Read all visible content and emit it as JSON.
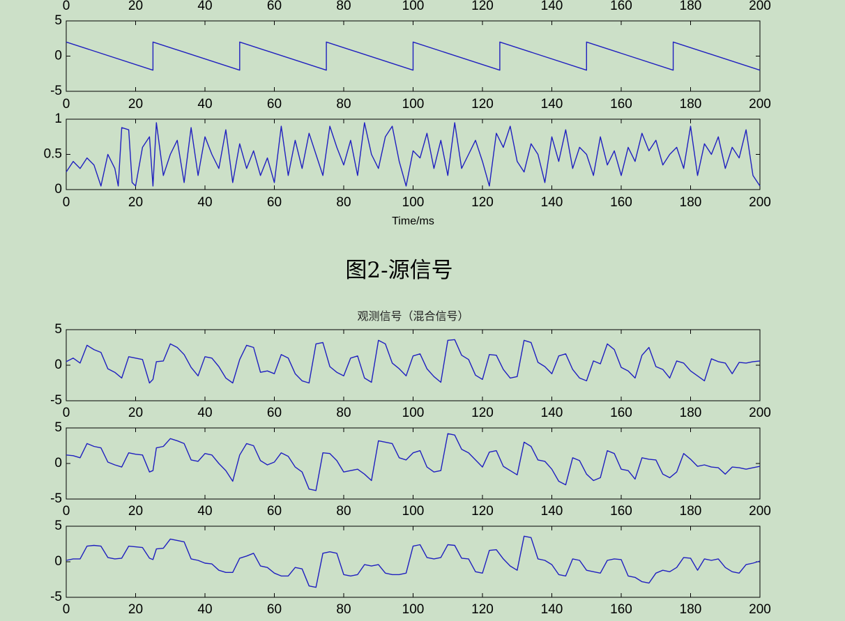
{
  "figure_caption": "图2-源信号",
  "mixed_title": "观测信号（混合信号）",
  "chart_data": [
    {
      "type": "line",
      "id": "source-top-partial",
      "x_ticks": [
        0,
        20,
        40,
        60,
        80,
        100,
        120,
        140,
        160,
        180,
        200
      ],
      "xlim": [
        0,
        200
      ]
    },
    {
      "type": "line",
      "id": "source-sawtooth",
      "xlim": [
        0,
        200
      ],
      "ylim": [
        -5,
        5
      ],
      "x_ticks": [
        0,
        20,
        40,
        60,
        80,
        100,
        120,
        140,
        160,
        180,
        200
      ],
      "y_ticks": [
        -5,
        0,
        5
      ],
      "series": [
        {
          "color": "#1f1fbf",
          "x": [
            0,
            25,
            25,
            50,
            50,
            75,
            75,
            100,
            100,
            125,
            125,
            150,
            150,
            175,
            175,
            200
          ],
          "y": [
            2,
            -2,
            2,
            -2,
            2,
            -2,
            2,
            -2,
            2,
            -2,
            2,
            -2,
            2,
            -2,
            2,
            -2
          ]
        }
      ]
    },
    {
      "type": "line",
      "id": "source-random",
      "xlim": [
        0,
        200
      ],
      "ylim": [
        0,
        1
      ],
      "x_ticks": [
        0,
        20,
        40,
        60,
        80,
        100,
        120,
        140,
        160,
        180,
        200
      ],
      "y_ticks": [
        0,
        0.5,
        1
      ],
      "y_tick_labels": [
        "0",
        "0.5",
        "1"
      ],
      "xlabel": "Time/ms",
      "series": [
        {
          "color": "#1f1fbf",
          "x": [
            0,
            2,
            4,
            6,
            8,
            10,
            12,
            14,
            15,
            16,
            18,
            19,
            20,
            22,
            24,
            25,
            26,
            28,
            30,
            32,
            34,
            36,
            38,
            40,
            42,
            44,
            46,
            48,
            50,
            52,
            54,
            56,
            58,
            60,
            62,
            64,
            66,
            68,
            70,
            72,
            74,
            76,
            78,
            80,
            82,
            84,
            86,
            88,
            90,
            92,
            94,
            96,
            98,
            100,
            102,
            104,
            106,
            108,
            110,
            112,
            114,
            116,
            118,
            120,
            122,
            124,
            126,
            128,
            130,
            132,
            134,
            136,
            138,
            140,
            142,
            144,
            146,
            148,
            150,
            152,
            154,
            156,
            158,
            160,
            162,
            164,
            166,
            168,
            170,
            172,
            174,
            176,
            178,
            180,
            182,
            184,
            186,
            188,
            190,
            192,
            194,
            196,
            198,
            200
          ],
          "y": [
            0.25,
            0.4,
            0.3,
            0.45,
            0.35,
            0.05,
            0.5,
            0.3,
            0.05,
            0.88,
            0.85,
            0.1,
            0.05,
            0.6,
            0.75,
            0.05,
            0.95,
            0.2,
            0.5,
            0.7,
            0.1,
            0.88,
            0.2,
            0.75,
            0.5,
            0.3,
            0.85,
            0.1,
            0.65,
            0.3,
            0.55,
            0.2,
            0.45,
            0.1,
            0.9,
            0.2,
            0.7,
            0.3,
            0.8,
            0.5,
            0.2,
            0.9,
            0.6,
            0.35,
            0.7,
            0.2,
            0.95,
            0.5,
            0.3,
            0.75,
            0.9,
            0.4,
            0.05,
            0.55,
            0.45,
            0.8,
            0.3,
            0.7,
            0.2,
            0.95,
            0.3,
            0.5,
            0.7,
            0.4,
            0.05,
            0.8,
            0.6,
            0.9,
            0.4,
            0.25,
            0.65,
            0.5,
            0.1,
            0.75,
            0.4,
            0.85,
            0.3,
            0.6,
            0.5,
            0.2,
            0.75,
            0.35,
            0.55,
            0.2,
            0.6,
            0.4,
            0.8,
            0.55,
            0.7,
            0.35,
            0.5,
            0.6,
            0.3,
            0.9,
            0.2,
            0.65,
            0.5,
            0.75,
            0.3,
            0.6,
            0.45,
            0.85,
            0.2,
            0.05
          ]
        }
      ]
    },
    {
      "type": "line",
      "id": "mixed-1",
      "xlim": [
        0,
        200
      ],
      "ylim": [
        -5,
        5
      ],
      "x_ticks": [
        0,
        20,
        40,
        60,
        80,
        100,
        120,
        140,
        160,
        180,
        200
      ],
      "y_ticks": [
        -5,
        0,
        5
      ],
      "series": [
        {
          "color": "#1f1fbf",
          "x": [
            0,
            2,
            4,
            6,
            8,
            10,
            12,
            14,
            16,
            18,
            20,
            22,
            24,
            25,
            26,
            28,
            30,
            32,
            34,
            36,
            38,
            40,
            42,
            44,
            46,
            48,
            50,
            52,
            54,
            56,
            58,
            60,
            62,
            64,
            66,
            68,
            70,
            72,
            74,
            76,
            78,
            80,
            82,
            84,
            86,
            88,
            90,
            92,
            94,
            96,
            98,
            100,
            102,
            104,
            106,
            108,
            110,
            112,
            114,
            116,
            118,
            120,
            122,
            124,
            126,
            128,
            130,
            132,
            134,
            136,
            138,
            140,
            142,
            144,
            146,
            148,
            150,
            152,
            154,
            156,
            158,
            160,
            162,
            164,
            166,
            168,
            170,
            172,
            174,
            176,
            178,
            180,
            182,
            184,
            186,
            188,
            190,
            192,
            194,
            196,
            198,
            200
          ],
          "y": [
            0.5,
            1,
            0.3,
            2.8,
            2.2,
            1.8,
            -0.5,
            -1,
            -1.8,
            1.2,
            1,
            0.8,
            -2.5,
            -2,
            0.5,
            0.6,
            3,
            2.5,
            1.5,
            -0.3,
            -1.5,
            1.2,
            1,
            -0.2,
            -1.8,
            -2.5,
            0.8,
            2.8,
            2.5,
            -1,
            -0.8,
            -1.2,
            1.5,
            1,
            -1.2,
            -2.2,
            -2.5,
            3,
            3.2,
            -0.2,
            -1,
            -1.5,
            1,
            1.3,
            -1.8,
            -2.4,
            3.5,
            3,
            0.3,
            -0.5,
            -1.5,
            1.3,
            1.6,
            -0.5,
            -1.6,
            -2.4,
            3.5,
            3.6,
            1.4,
            0.8,
            -1.4,
            -2,
            1.5,
            1.4,
            -0.6,
            -1.8,
            -1.6,
            3.5,
            3.2,
            0.4,
            -0.2,
            -1.2,
            1.3,
            1.6,
            -0.6,
            -1.8,
            -2.2,
            0.6,
            0.2,
            3,
            2.2,
            -0.3,
            -0.8,
            -1.8,
            1.4,
            2.5,
            -0.2,
            -0.6,
            -1.8,
            0.6,
            0.3,
            -0.8,
            -1.5,
            -2.2,
            0.9,
            0.5,
            0.3,
            -1.2,
            0.4,
            0.3,
            0.5,
            0.6
          ]
        }
      ]
    },
    {
      "type": "line",
      "id": "mixed-2",
      "xlim": [
        0,
        200
      ],
      "ylim": [
        -5,
        5
      ],
      "x_ticks": [
        0,
        20,
        40,
        60,
        80,
        100,
        120,
        140,
        160,
        180,
        200
      ],
      "y_ticks": [
        -5,
        0,
        5
      ],
      "series": [
        {
          "color": "#1f1fbf",
          "x": [
            0,
            2,
            4,
            6,
            8,
            10,
            12,
            14,
            16,
            18,
            20,
            22,
            24,
            25,
            26,
            28,
            30,
            32,
            34,
            36,
            38,
            40,
            42,
            44,
            46,
            48,
            50,
            52,
            54,
            56,
            58,
            60,
            62,
            64,
            66,
            68,
            70,
            72,
            74,
            76,
            78,
            80,
            82,
            84,
            86,
            88,
            90,
            92,
            94,
            96,
            98,
            100,
            102,
            104,
            106,
            108,
            110,
            112,
            114,
            116,
            118,
            120,
            122,
            124,
            126,
            128,
            130,
            132,
            134,
            136,
            138,
            140,
            142,
            144,
            146,
            148,
            150,
            152,
            154,
            156,
            158,
            160,
            162,
            164,
            166,
            168,
            170,
            172,
            174,
            176,
            178,
            180,
            182,
            184,
            186,
            188,
            190,
            192,
            194,
            196,
            198,
            200
          ],
          "y": [
            1.2,
            1.1,
            0.8,
            2.8,
            2.4,
            2.2,
            0.2,
            -0.2,
            -0.5,
            1.5,
            1.3,
            1.2,
            -1.2,
            -1,
            2.2,
            2.4,
            3.5,
            3.2,
            2.8,
            0.5,
            0.3,
            1.4,
            1.2,
            0,
            -1,
            -2.5,
            1.2,
            2.8,
            2.5,
            0.4,
            -0.2,
            0.2,
            1.5,
            1,
            -0.5,
            -1.2,
            -3.6,
            -3.8,
            1.5,
            1.4,
            0.4,
            -1.2,
            -1,
            -0.8,
            -1.5,
            -2.4,
            3.2,
            3,
            2.8,
            0.8,
            0.5,
            1.5,
            1.8,
            -0.5,
            -1.2,
            -1,
            4.2,
            4,
            2,
            1.5,
            0.5,
            -0.5,
            1.6,
            1.8,
            -0.4,
            -1,
            -1.6,
            3,
            2.4,
            0.5,
            0.3,
            -0.8,
            -2.5,
            -3,
            0.8,
            0.4,
            -1.5,
            -2.4,
            -2,
            1.8,
            1.4,
            -0.8,
            -1,
            -2.2,
            0.8,
            0.6,
            0.5,
            -1.5,
            -2,
            -1.2,
            1.4,
            0.6,
            -0.4,
            -0.2,
            -0.5,
            -0.6,
            -1.5,
            -0.5,
            -0.6,
            -0.8,
            -0.6,
            -0.4
          ]
        }
      ]
    },
    {
      "type": "line",
      "id": "mixed-3",
      "xlim": [
        0,
        200
      ],
      "ylim": [
        -5,
        5
      ],
      "x_ticks": [
        0,
        20,
        40,
        60,
        80,
        100,
        120,
        140,
        160,
        180,
        200
      ],
      "y_ticks": [
        -5,
        0,
        5
      ],
      "series": [
        {
          "color": "#1f1fbf",
          "x": [
            0,
            2,
            4,
            6,
            8,
            10,
            12,
            14,
            16,
            18,
            20,
            22,
            24,
            25,
            26,
            28,
            30,
            32,
            34,
            36,
            38,
            40,
            42,
            44,
            46,
            48,
            50,
            52,
            54,
            56,
            58,
            60,
            62,
            64,
            66,
            68,
            70,
            72,
            74,
            76,
            78,
            80,
            82,
            84,
            86,
            88,
            90,
            92,
            94,
            96,
            98,
            100,
            102,
            104,
            106,
            108,
            110,
            112,
            114,
            116,
            118,
            120,
            122,
            124,
            126,
            128,
            130,
            132,
            134,
            136,
            138,
            140,
            142,
            144,
            146,
            148,
            150,
            152,
            154,
            156,
            158,
            160,
            162,
            164,
            166,
            168,
            170,
            172,
            174,
            176,
            178,
            180,
            182,
            184,
            186,
            188,
            190,
            192,
            194,
            196,
            198,
            200
          ],
          "y": [
            0.2,
            0.4,
            0.4,
            2.2,
            2.3,
            2.2,
            0.6,
            0.4,
            0.5,
            2.2,
            2.1,
            2,
            0.5,
            0.3,
            1.8,
            1.9,
            3.2,
            3,
            2.8,
            0.4,
            0.2,
            -0.2,
            -0.3,
            -1.2,
            -1.5,
            -1.5,
            0.5,
            0.8,
            1.2,
            -0.6,
            -0.8,
            -1.6,
            -2,
            -2,
            -0.8,
            -1,
            -3.4,
            -3.6,
            1.2,
            1.4,
            1.2,
            -1.8,
            -2,
            -1.8,
            -0.4,
            -0.6,
            -0.4,
            -1.6,
            -1.8,
            -1.8,
            -1.6,
            2.2,
            2.4,
            0.6,
            0.4,
            0.6,
            2.4,
            2.3,
            0.5,
            0.4,
            -1.4,
            -1.6,
            1.6,
            1.7,
            0.4,
            -0.6,
            -1.2,
            3.6,
            3.4,
            0.4,
            0.2,
            -0.4,
            -1.8,
            -2,
            0.4,
            0.2,
            -1.2,
            -1.4,
            -1.6,
            0.2,
            0.4,
            0.3,
            -2,
            -2.2,
            -2.8,
            -3,
            -1.6,
            -1.2,
            -1.4,
            -0.8,
            0.6,
            0.5,
            -1.2,
            0.4,
            0.2,
            0.4,
            -0.8,
            -1.4,
            -1.6,
            -0.4,
            -0.2,
            0.1
          ]
        }
      ]
    }
  ]
}
